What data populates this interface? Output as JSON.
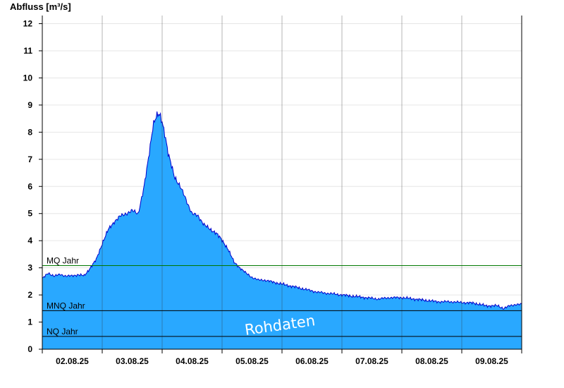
{
  "chart_data": {
    "type": "area",
    "ylabel": "Abfluss [m³/s]",
    "ylim": [
      0,
      12.3
    ],
    "yticks": [
      0,
      1,
      2,
      3,
      4,
      5,
      6,
      7,
      8,
      9,
      10,
      11,
      12
    ],
    "xlim_days": [
      0,
      8
    ],
    "xticks": [
      "02.08.25",
      "03.08.25",
      "04.08.25",
      "05.08.25",
      "06.08.25",
      "07.08.25",
      "08.08.25",
      "09.08.25"
    ],
    "grid": true,
    "watermark": "Rohdaten",
    "colors": {
      "fill": "#29a8ff",
      "line": "#0000cc",
      "mq_line": "#007700",
      "ref_line": "#000000"
    },
    "reference_lines": [
      {
        "label": "MQ Jahr",
        "value": 3.08
      },
      {
        "label": "MNQ Jahr",
        "value": 1.42
      },
      {
        "label": "NQ Jahr",
        "value": 0.47
      }
    ],
    "series": [
      {
        "x": [
          0,
          0.1,
          0.2,
          0.3,
          0.4,
          0.5,
          0.6,
          0.7,
          0.8,
          0.9,
          1.0,
          1.1,
          1.2,
          1.3,
          1.4,
          1.5,
          1.6,
          1.7,
          1.75,
          1.8,
          1.85,
          1.9,
          1.95,
          2.0,
          2.05,
          2.1,
          2.15,
          2.2,
          2.3,
          2.4,
          2.5,
          2.6,
          2.7,
          2.8,
          2.9,
          3.0,
          3.1,
          3.2,
          3.3,
          3.4,
          3.5,
          3.6,
          3.7,
          3.8,
          3.9,
          4.0,
          4.2,
          4.4,
          4.6,
          4.8,
          5.0,
          5.2,
          5.4,
          5.6,
          5.8,
          6.0,
          6.2,
          6.4,
          6.6,
          6.8,
          7.0,
          7.2,
          7.4,
          7.6,
          7.7,
          7.8,
          7.9,
          8.0
        ],
        "y": [
          2.6,
          2.8,
          2.7,
          2.75,
          2.7,
          2.7,
          2.75,
          2.7,
          3.0,
          3.3,
          3.9,
          4.4,
          4.7,
          4.9,
          5.0,
          5.1,
          5.0,
          6.0,
          6.7,
          7.5,
          8.3,
          8.55,
          8.65,
          8.4,
          7.9,
          7.2,
          6.8,
          6.4,
          6.0,
          5.5,
          5.0,
          4.9,
          4.6,
          4.4,
          4.3,
          4.0,
          3.7,
          3.2,
          3.0,
          2.8,
          2.65,
          2.55,
          2.55,
          2.5,
          2.45,
          2.4,
          2.3,
          2.2,
          2.1,
          2.05,
          2.0,
          1.95,
          1.9,
          1.85,
          1.9,
          1.9,
          1.85,
          1.8,
          1.75,
          1.75,
          1.72,
          1.7,
          1.6,
          1.6,
          1.5,
          1.6,
          1.65,
          1.65
        ]
      }
    ]
  }
}
